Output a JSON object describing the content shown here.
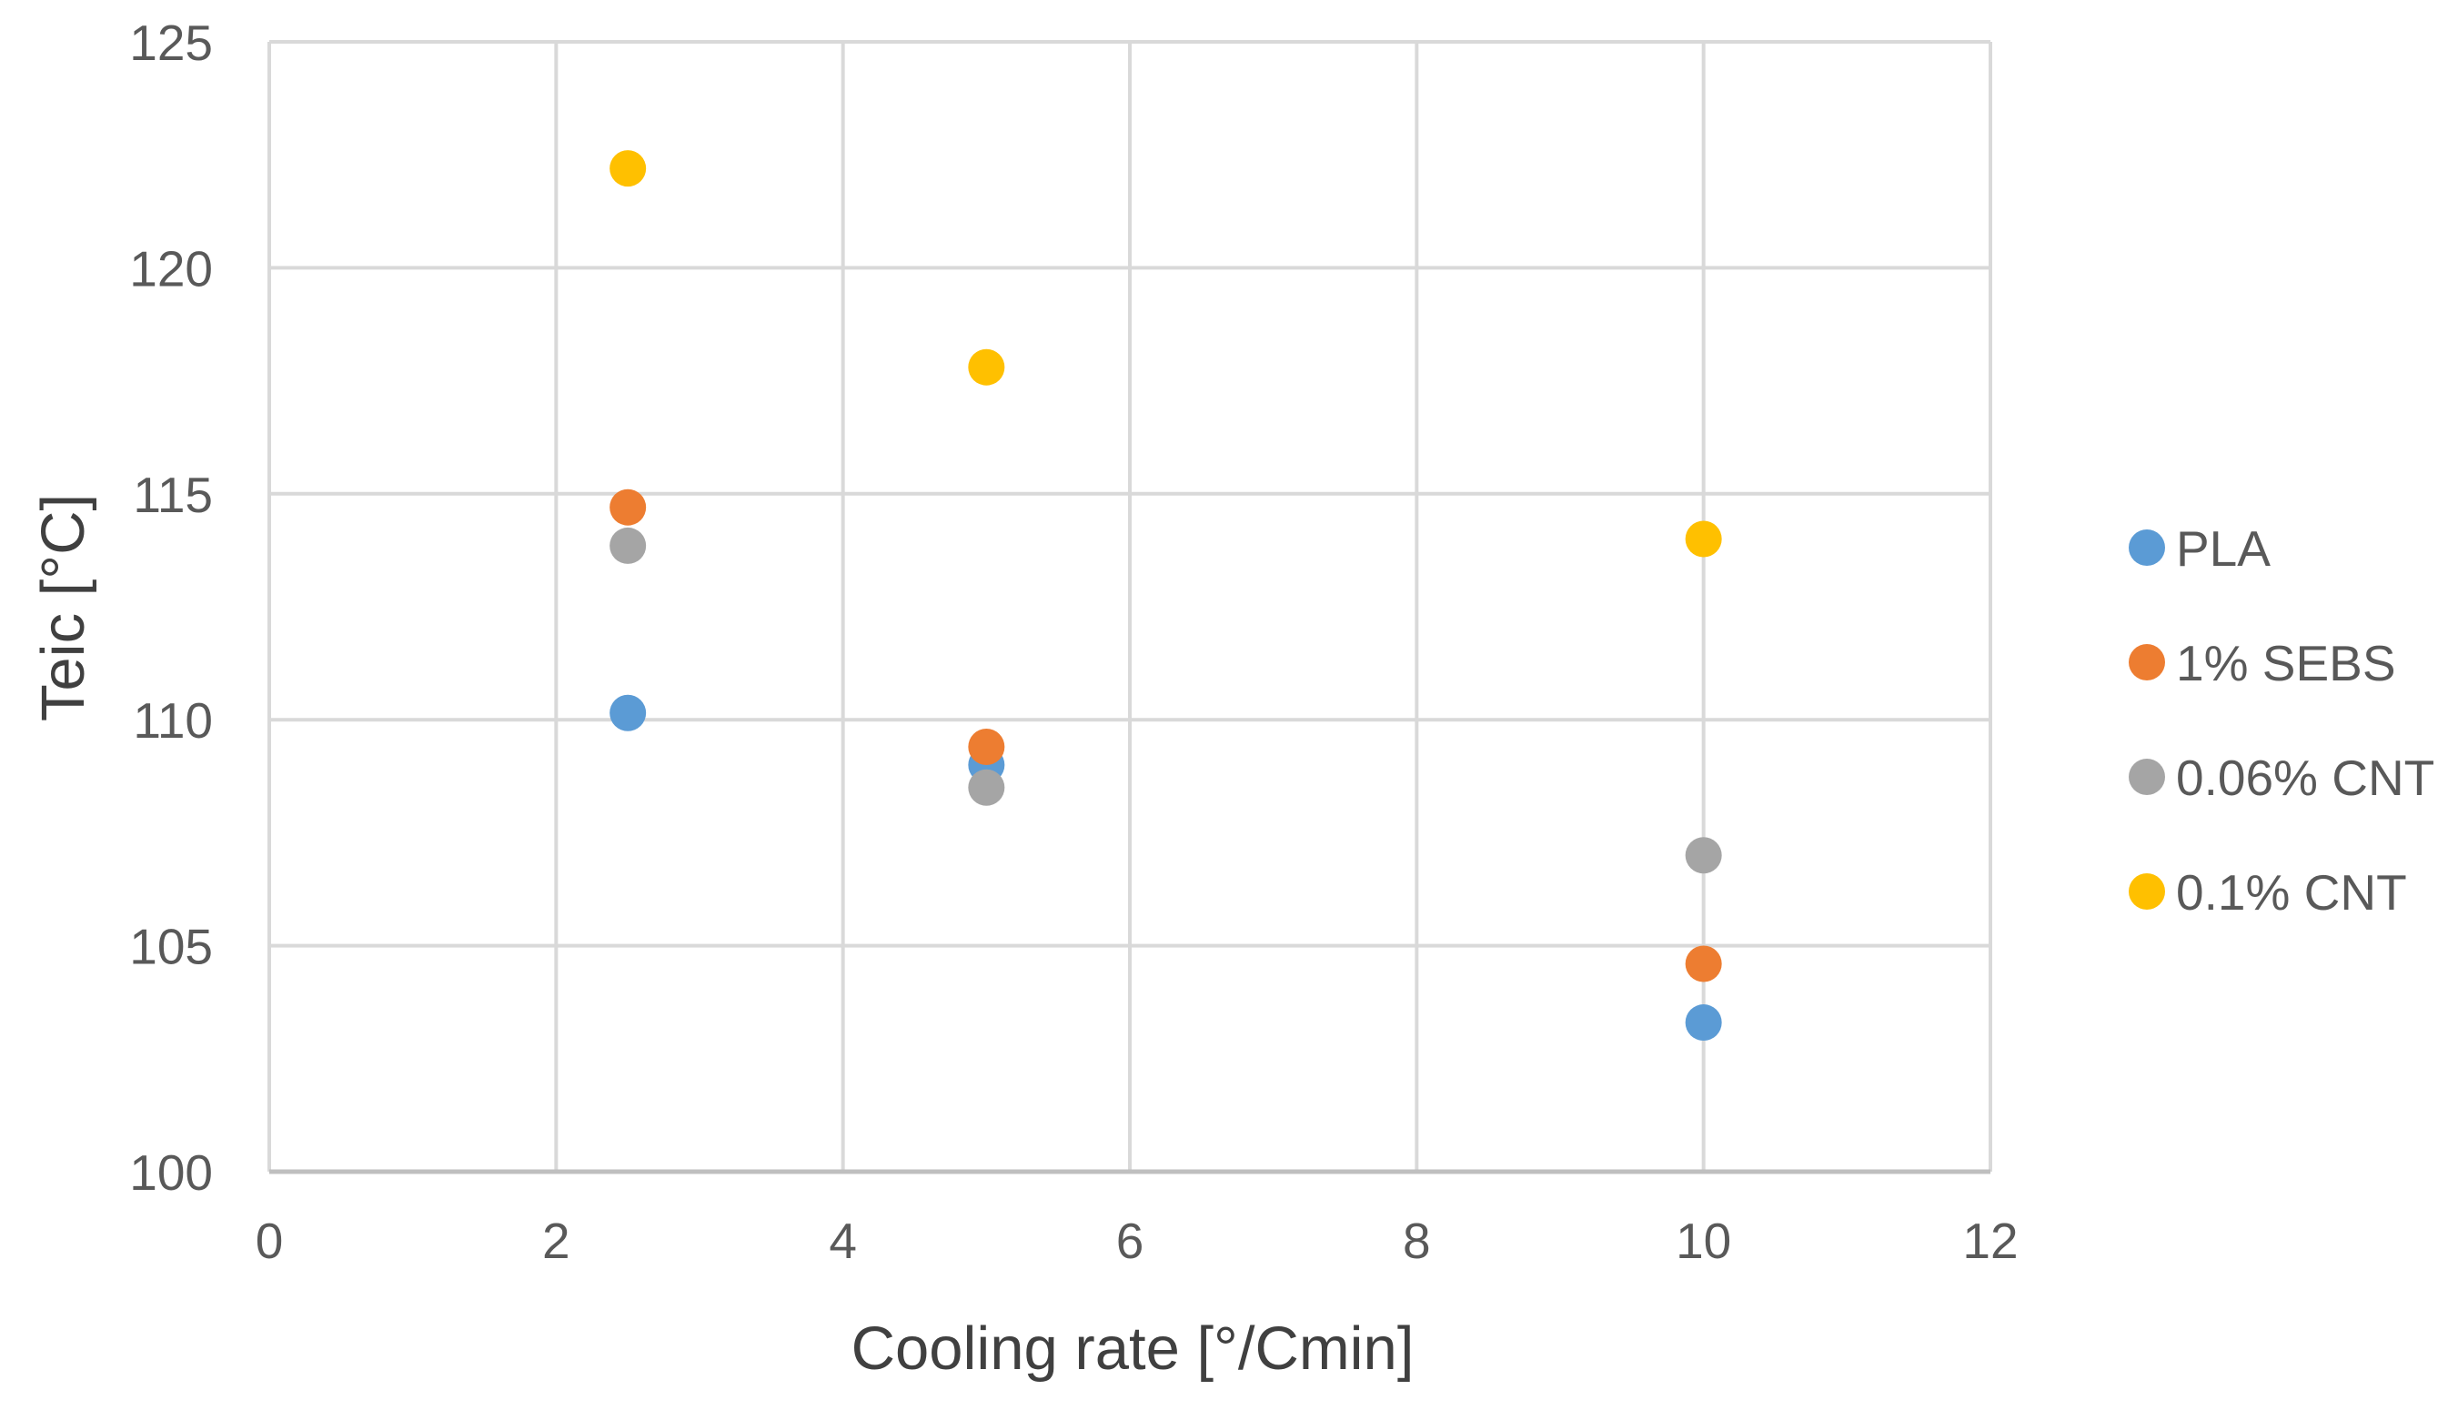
{
  "chart_data": {
    "type": "scatter",
    "title": "",
    "xlabel": "Cooling rate [°/Cmin]",
    "ylabel": "Teic [°C]",
    "xlim": [
      0,
      12
    ],
    "ylim": [
      100,
      125
    ],
    "xticks": [
      0,
      2,
      4,
      6,
      8,
      10,
      12
    ],
    "yticks": [
      100,
      105,
      110,
      115,
      120,
      125
    ],
    "xtick_labels": [
      "0",
      "2",
      "4",
      "6",
      "8",
      "10",
      "12"
    ],
    "ytick_labels": [
      "100",
      "105",
      "110",
      "115",
      "120",
      "125"
    ],
    "grid": true,
    "legend_position": "right",
    "series": [
      {
        "name": "PLA",
        "color": "#5B9BD5",
        "x": [
          2.5,
          5,
          10
        ],
        "y": [
          110.15,
          109.0,
          103.3
        ]
      },
      {
        "name": "1% SEBS",
        "color": "#ED7D31",
        "x": [
          2.5,
          5,
          10
        ],
        "y": [
          114.7,
          109.4,
          104.6
        ]
      },
      {
        "name": "0.06% CNT",
        "color": "#A5A5A5",
        "x": [
          2.5,
          5,
          10
        ],
        "y": [
          113.85,
          108.5,
          107.0
        ]
      },
      {
        "name": "0.1% CNT",
        "color": "#FFC000",
        "x": [
          2.5,
          5,
          10
        ],
        "y": [
          122.2,
          117.8,
          114.0
        ]
      }
    ]
  }
}
